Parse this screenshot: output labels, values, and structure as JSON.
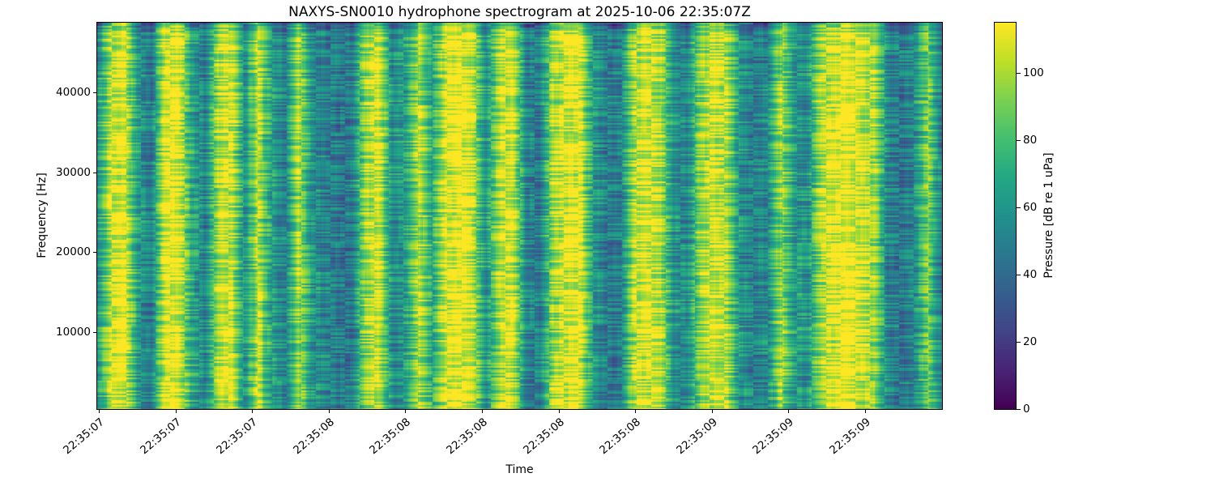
{
  "chart_data": {
    "type": "heatmap",
    "subtype": "spectrogram",
    "title": "NAXYS-SN0010 hydrophone spectrogram at 2025-10-06 22:35:07Z",
    "xlabel": "Time",
    "ylabel": "Frequency [Hz]",
    "x_tick_labels": [
      "22:35:07",
      "22:35:07",
      "22:35:07",
      "22:35:08",
      "22:35:08",
      "22:35:08",
      "22:35:08",
      "22:35:08",
      "22:35:09",
      "22:35:09",
      "22:35:09"
    ],
    "y_tick_labels": [
      "10000",
      "20000",
      "30000",
      "40000"
    ],
    "y_tick_values": [
      10000,
      20000,
      30000,
      40000
    ],
    "ylim": [
      0,
      48000
    ],
    "time_range": [
      "22:35:07",
      "22:35:09"
    ],
    "grid": false,
    "legend": "none",
    "colorbar": {
      "label": "Pressure [dB re 1 uPa]",
      "ticks": [
        0,
        20,
        40,
        60,
        80,
        100
      ],
      "vmin": 0,
      "vmax": 115,
      "colormap": "viridis",
      "viridis_anchors": [
        "#440154",
        "#482475",
        "#414487",
        "#355f8d",
        "#2a788e",
        "#21918c",
        "#22a884",
        "#44bf70",
        "#7ad151",
        "#bddf26",
        "#fde725"
      ]
    },
    "band_intensities": [
      0.5,
      0.92,
      0.98,
      0.55,
      0.4,
      0.95,
      1.0,
      0.6,
      0.42,
      0.88,
      0.95,
      0.5,
      0.9,
      0.55,
      0.42,
      0.88,
      0.5,
      0.45,
      0.4,
      0.42,
      0.85,
      0.95,
      0.48,
      0.55,
      0.9,
      0.6,
      0.95,
      1.0,
      0.92,
      0.5,
      0.88,
      0.96,
      0.45,
      0.42,
      0.85,
      0.95,
      0.98,
      0.55,
      0.42,
      0.4,
      0.88,
      0.96,
      0.9,
      0.52,
      0.45,
      0.82,
      0.95,
      0.88,
      0.48,
      0.42,
      0.45,
      0.85,
      0.55,
      0.5,
      0.88,
      0.95,
      1.0,
      0.92,
      0.85,
      0.45,
      0.4,
      0.5,
      0.8,
      0.42
    ]
  }
}
